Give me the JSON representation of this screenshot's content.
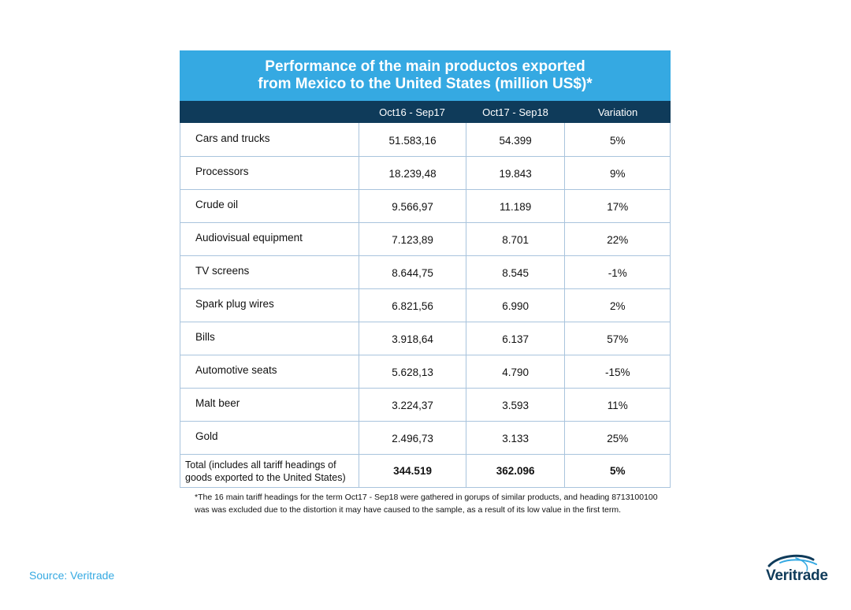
{
  "chart_data": {
    "type": "table",
    "title_lines": [
      "Performance of the main productos exported",
      "from Mexico to the United States (million US$)*"
    ],
    "columns": [
      "",
      "Oct16 - Sep17",
      "Oct17 - Sep18",
      "Variation"
    ],
    "rows": [
      {
        "product": "Cars and trucks",
        "oct16_sep17": "51.583,16",
        "oct17_sep18": "54.399",
        "variation": "5%"
      },
      {
        "product": "Processors",
        "oct16_sep17": "18.239,48",
        "oct17_sep18": "19.843",
        "variation": "9%"
      },
      {
        "product": "Crude oil",
        "oct16_sep17": "9.566,97",
        "oct17_sep18": "11.189",
        "variation": "17%"
      },
      {
        "product": "Audiovisual equipment",
        "oct16_sep17": "7.123,89",
        "oct17_sep18": "8.701",
        "variation": "22%"
      },
      {
        "product": "TV screens",
        "oct16_sep17": "8.644,75",
        "oct17_sep18": "8.545",
        "variation": "-1%"
      },
      {
        "product": "Spark plug wires",
        "oct16_sep17": "6.821,56",
        "oct17_sep18": "6.990",
        "variation": "2%"
      },
      {
        "product": "Bills",
        "oct16_sep17": "3.918,64",
        "oct17_sep18": "6.137",
        "variation": "57%"
      },
      {
        "product": "Automotive seats",
        "oct16_sep17": "5.628,13",
        "oct17_sep18": "4.790",
        "variation": "-15%"
      },
      {
        "product": "Malt beer",
        "oct16_sep17": "3.224,37",
        "oct17_sep18": "3.593",
        "variation": "11%"
      },
      {
        "product": "Gold",
        "oct16_sep17": "2.496,73",
        "oct17_sep18": "3.133",
        "variation": "25%"
      }
    ],
    "total": {
      "label_lines": [
        "Total (includes all tariff headings of",
        "goods exported to the United States)"
      ],
      "oct16_sep17": "344.519",
      "oct17_sep18": "362.096",
      "variation": "5%"
    },
    "footnote": "*The 16 main tariff headings for the term Oct17 - Sep18 were gathered in gorups of similar products, and heading 8713100100 was was excluded due to the distortion it may have caused to the sample, as a result of its low value in the first term."
  },
  "source": "Source: Veritrade",
  "logo": {
    "text": "Veritrade"
  },
  "colors": {
    "title_bg": "#35a9e2",
    "header_bg": "#0f3b5a",
    "grid": "#a9c4dd",
    "source_text": "#35a9e2",
    "logo": "#0f3b5a"
  }
}
